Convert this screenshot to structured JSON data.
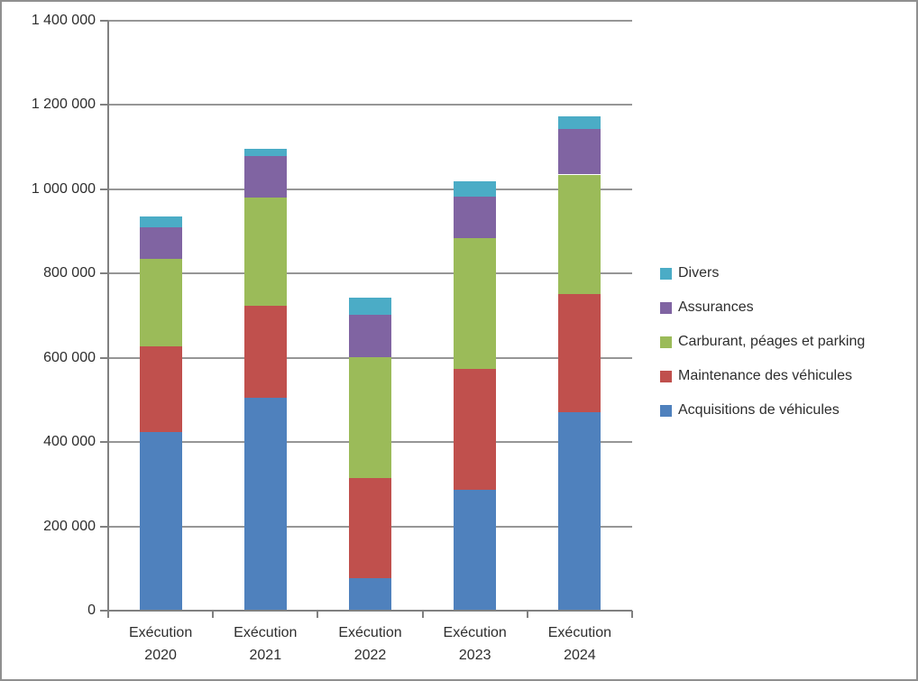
{
  "chart_data": {
    "type": "bar",
    "stacked": true,
    "title": "",
    "xlabel": "",
    "ylabel": "",
    "grid": true,
    "ylim": [
      0,
      1400000
    ],
    "ytick_interval": 200000,
    "ytick_labels": [
      "0",
      "200 000",
      "400 000",
      "600 000",
      "800 000",
      "1 000 000",
      "1 200 000",
      "1 400 000"
    ],
    "categories": [
      "Exécution 2020",
      "Exécution 2021",
      "Exécution 2022",
      "Exécution 2023",
      "Exécution 2024"
    ],
    "series": [
      {
        "name": "Acquisitions de véhicules",
        "color": "#4F81BD",
        "values": [
          423000,
          505000,
          76000,
          287000,
          471000
        ]
      },
      {
        "name": "Maintenance des véhicules",
        "color": "#C0504D",
        "values": [
          205000,
          218000,
          239000,
          286000,
          281000
        ]
      },
      {
        "name": "Carburant, péages et parking",
        "color": "#9BBB59",
        "values": [
          207000,
          257000,
          287000,
          312000,
          283000
        ]
      },
      {
        "name": "Assurances",
        "color": "#8064A2",
        "values": [
          74000,
          98000,
          101000,
          98000,
          108000
        ]
      },
      {
        "name": "Divers",
        "color": "#4BACC6",
        "values": [
          26000,
          18000,
          40000,
          36000,
          31000
        ]
      }
    ],
    "stack_order": "bottom-to-top",
    "totals": [
      935000,
      1096000,
      743000,
      1019000,
      1174000
    ],
    "legend": {
      "position": "right",
      "order": [
        "Divers",
        "Assurances",
        "Carburant, péages et parking",
        "Maintenance des véhicules",
        "Acquisitions de véhicules"
      ]
    }
  },
  "colors": {
    "gridline": "#969696",
    "axis": "#808080",
    "frame_border": "#8f8f8f",
    "text": "#2e2e2e",
    "background": "#ffffff"
  }
}
